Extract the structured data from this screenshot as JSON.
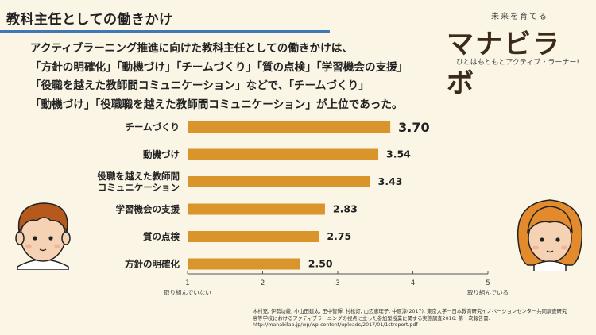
{
  "page": {
    "title": "教科主任としての働きかけ",
    "lead_lines": [
      "アクティブラーニング推進に向けた教科主任としての働きかけは、",
      "「方針の明確化」「動機づけ」「チームづくり」「質の点検」「学習機会の支援」",
      "「役職を越えた教師間コミュニケーション」などで、「チームづくり」",
      "「動機づけ」「役職職を越えた教師間コミュニケーション」が上位であった。"
    ]
  },
  "logo": {
    "tagline": "未来を育てる",
    "name": "マナビラボ",
    "subtitle": "ひとはもともとアクティブ・ラーナー!"
  },
  "source": {
    "lines": [
      "木村充, 伊勢坊綾, 小山田建太, 田中智輝, 村松灯, 山辺恵理子, 中原淳(2017). 東京大学－日本教育研究イノベーションセンター共同調査研究",
      "高等学校におけるアクティブラーニングの視点に立った参加型授業に関する実態調査2016: 第一次報告書.",
      "http://manabilab.jp/wp/wp-content/uploads/2017/01/1streport.pdf"
    ]
  },
  "colors": {
    "bar": "#d9952c",
    "accent": "#3f78b5",
    "background": "#fbf5e6"
  },
  "chart_data": {
    "type": "bar",
    "orientation": "horizontal",
    "categories": [
      [
        "チームづくり"
      ],
      [
        "動機づけ"
      ],
      [
        "役職を越えた教師間",
        "コミュニケーション"
      ],
      [
        "学習機会の支援"
      ],
      [
        "質の点検"
      ],
      [
        "方針の明確化"
      ]
    ],
    "values": [
      3.7,
      3.54,
      3.43,
      2.83,
      2.75,
      2.5
    ],
    "value_labels": [
      "3.70",
      "3.54",
      "3.43",
      "2.83",
      "2.75",
      "2.50"
    ],
    "xlim": [
      1,
      5
    ],
    "ticks": [
      1,
      2,
      3,
      4,
      5
    ],
    "tick_labels": [
      "1",
      "2",
      "3",
      "4",
      "5"
    ],
    "axis_min_label": "取り組んでいない",
    "axis_max_label": "取り組んでいる",
    "grid": false
  }
}
